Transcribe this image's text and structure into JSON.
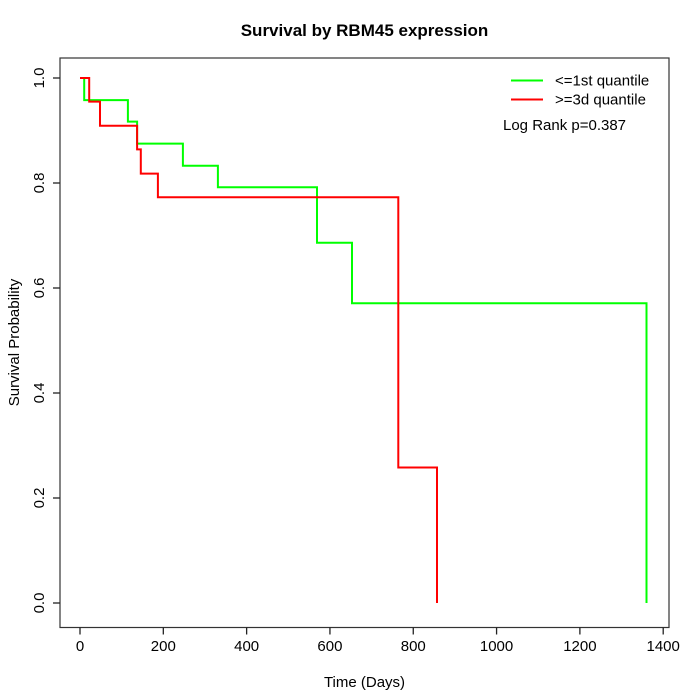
{
  "title": "Survival by RBM45 expression",
  "axes": {
    "x_label": "Time (Days)",
    "y_label": "Survival Probability",
    "x_ticks": [
      0,
      200,
      400,
      600,
      800,
      1000,
      1200,
      1400
    ],
    "y_ticks": [
      "0.0",
      "0.2",
      "0.4",
      "0.6",
      "0.8",
      "1.0"
    ]
  },
  "legend": {
    "items": [
      {
        "key": "le-1st-quantile",
        "label": "<=1st quantile",
        "color": "#00ff00"
      },
      {
        "key": "ge-3d-quantile",
        "label": ">=3d quantile",
        "color": "#ff0000"
      }
    ],
    "note": "Log Rank p=0.387"
  },
  "chart_data": {
    "type": "line",
    "subtype": "kaplan-meier-step",
    "title": "Survival by RBM45 expression",
    "xlabel": "Time (Days)",
    "ylabel": "Survival Probability",
    "xlim": [
      0,
      1400
    ],
    "ylim": [
      0.0,
      1.0
    ],
    "grid": false,
    "legend_position": "top-right-inside",
    "annotation": "Log Rank p=0.387",
    "series": [
      {
        "name": "<=1st quantile",
        "key": "le-1st-quantile",
        "color": "#00ff00",
        "points_comment": "pairs of [time_days, survival_probability_after_step]",
        "points": [
          [
            0,
            1.0
          ],
          [
            10,
            0.958
          ],
          [
            115,
            0.917
          ],
          [
            137,
            0.875
          ],
          [
            247,
            0.833
          ],
          [
            331,
            0.792
          ],
          [
            569,
            0.686
          ],
          [
            653,
            0.571
          ],
          [
            1360,
            0.0
          ]
        ]
      },
      {
        "name": ">=3d quantile",
        "key": "ge-3d-quantile",
        "color": "#ff0000",
        "points_comment": "pairs of [time_days, survival_probability_after_step]",
        "points": [
          [
            0,
            1.0
          ],
          [
            22,
            0.955
          ],
          [
            48,
            0.909
          ],
          [
            137,
            0.864
          ],
          [
            146,
            0.818
          ],
          [
            187,
            0.773
          ],
          [
            764,
            0.258
          ],
          [
            857,
            0.0
          ]
        ]
      }
    ]
  }
}
